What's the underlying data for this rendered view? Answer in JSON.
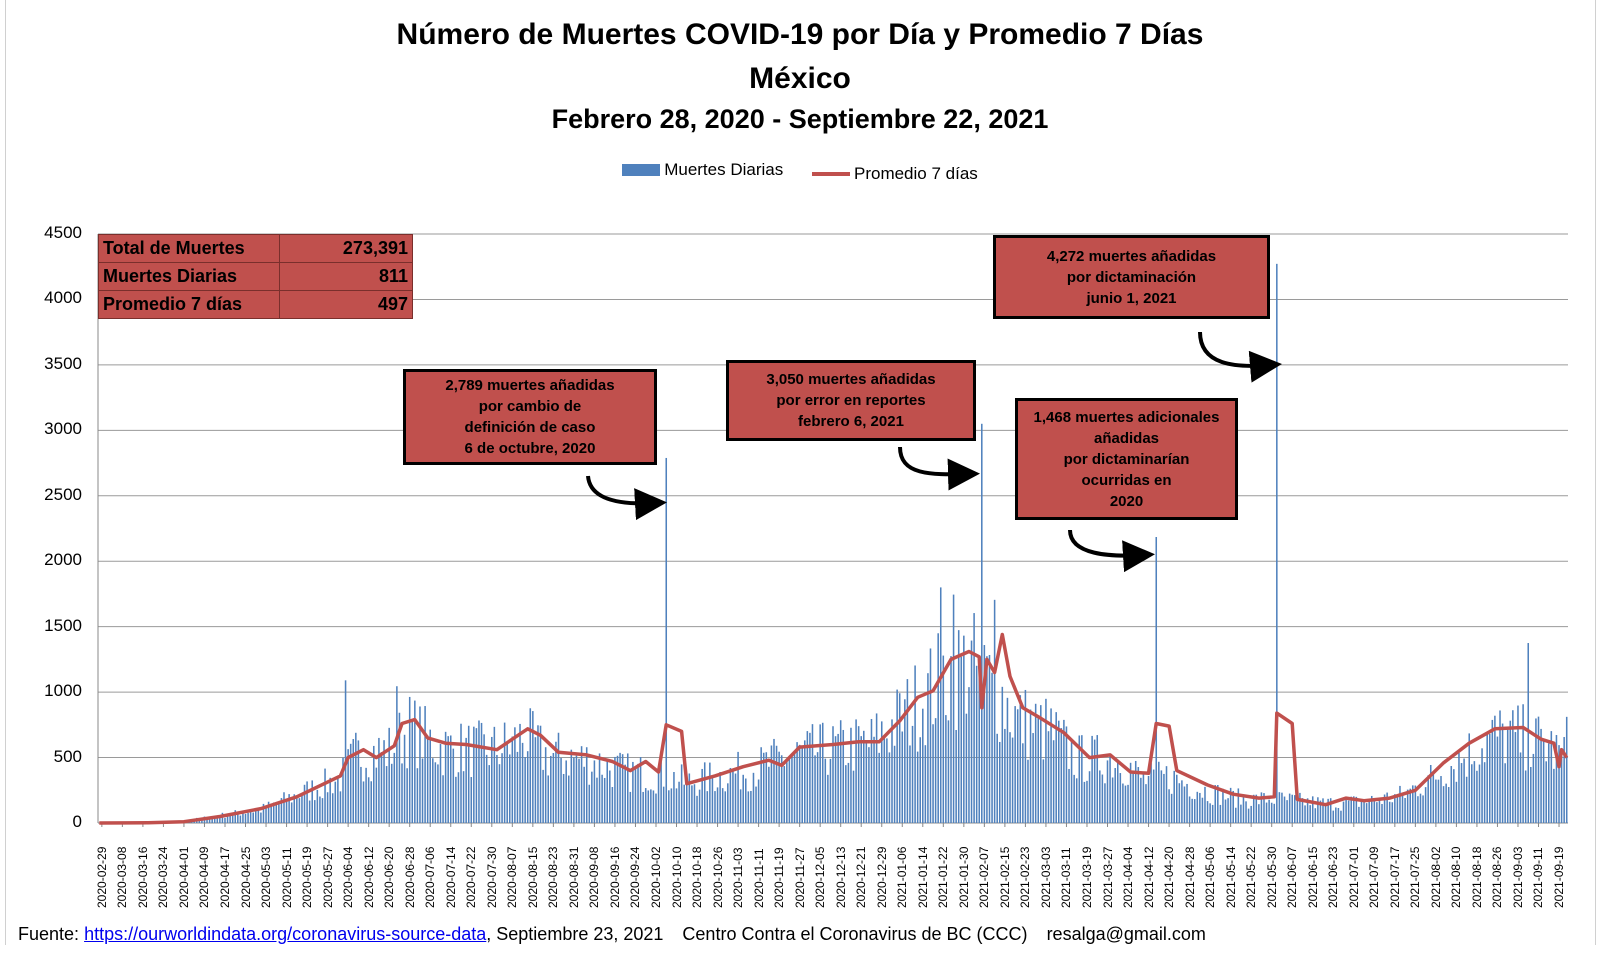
{
  "chart_data": {
    "type": "bar",
    "title": "Número de Muertes COVID-19 por Día y Promedio 7 Días",
    "subtitle": "México",
    "subtitle2": "Febrero 28, 2020 - Septiembre 22, 2021",
    "ylim": [
      0,
      4500
    ],
    "yticks": [
      "4500",
      "4000",
      "3500",
      "3000",
      "2500",
      "2000",
      "1500",
      "1000",
      "500",
      "0"
    ],
    "yvalues": [
      4500,
      4000,
      3500,
      3000,
      2500,
      2000,
      1500,
      1000,
      500,
      0
    ],
    "x_start": "2020-02-28",
    "x_end": "2021-09-22",
    "xticks": [
      "2020-02-29",
      "2020-03-08",
      "2020-03-16",
      "2020-03-24",
      "2020-04-01",
      "2020-04-09",
      "2020-04-17",
      "2020-04-25",
      "2020-05-03",
      "2020-05-11",
      "2020-05-19",
      "2020-05-27",
      "2020-06-04",
      "2020-06-12",
      "2020-06-20",
      "2020-06-28",
      "2020-07-06",
      "2020-07-14",
      "2020-07-22",
      "2020-07-30",
      "2020-08-07",
      "2020-08-15",
      "2020-08-23",
      "2020-08-31",
      "2020-09-08",
      "2020-09-16",
      "2020-09-24",
      "2020-10-02",
      "2020-10-10",
      "2020-10-18",
      "2020-10-26",
      "2020-11-03",
      "2020-11-11",
      "2020-11-19",
      "2020-11-27",
      "2020-12-05",
      "2020-12-13",
      "2020-12-21",
      "2020-12-29",
      "2021-01-06",
      "2021-01-14",
      "2021-01-22",
      "2021-01-30",
      "2021-02-07",
      "2021-02-15",
      "2021-02-23",
      "2021-03-03",
      "2021-03-11",
      "2021-03-19",
      "2021-03-27",
      "2021-04-04",
      "2021-04-12",
      "2021-04-20",
      "2021-04-28",
      "2021-05-06",
      "2021-05-14",
      "2021-05-22",
      "2021-05-30",
      "2021-06-07",
      "2021-06-15",
      "2021-06-23",
      "2021-07-01",
      "2021-07-09",
      "2021-07-17",
      "2021-07-25",
      "2021-08-02",
      "2021-08-10",
      "2021-08-18",
      "2021-08-26",
      "2021-09-03",
      "2021-09-11",
      "2021-09-19"
    ],
    "legend": {
      "bars": "Muertes Diarias",
      "line": "Promedio 7 días",
      "position": "top"
    },
    "series": [
      {
        "name": "Muertes Diarias",
        "type": "bar",
        "color": "#4f81bd",
        "approx_level_points": [
          [
            "2020-02-28",
            0
          ],
          [
            "2020-03-18",
            2
          ],
          [
            "2020-04-01",
            15
          ],
          [
            "2020-04-15",
            60
          ],
          [
            "2020-05-01",
            110
          ],
          [
            "2020-05-15",
            230
          ],
          [
            "2020-06-01",
            370
          ],
          [
            "2020-06-07",
            560
          ],
          [
            "2020-06-20",
            600
          ],
          [
            "2020-06-28",
            780
          ],
          [
            "2020-07-10",
            620
          ],
          [
            "2020-07-30",
            600
          ],
          [
            "2020-08-07",
            650
          ],
          [
            "2020-08-12",
            720
          ],
          [
            "2020-08-20",
            560
          ],
          [
            "2020-09-05",
            520
          ],
          [
            "2020-09-20",
            420
          ],
          [
            "2020-10-05",
            400
          ],
          [
            "2020-10-14",
            330
          ],
          [
            "2020-10-25",
            380
          ],
          [
            "2020-11-10",
            450
          ],
          [
            "2020-11-24",
            560
          ],
          [
            "2020-12-10",
            610
          ],
          [
            "2020-12-25",
            660
          ],
          [
            "2021-01-05",
            850
          ],
          [
            "2021-01-15",
            1050
          ],
          [
            "2021-01-25",
            1250
          ],
          [
            "2021-02-01",
            1300
          ],
          [
            "2021-02-10",
            1150
          ],
          [
            "2021-02-20",
            850
          ],
          [
            "2021-03-05",
            750
          ],
          [
            "2021-03-15",
            530
          ],
          [
            "2021-04-01",
            530
          ],
          [
            "2021-04-10",
            350
          ],
          [
            "2021-04-20",
            380
          ],
          [
            "2021-05-05",
            260
          ],
          [
            "2021-05-20",
            190
          ],
          [
            "2021-05-30",
            200
          ],
          [
            "2021-06-10",
            180
          ],
          [
            "2021-06-20",
            160
          ],
          [
            "2021-07-01",
            170
          ],
          [
            "2021-07-10",
            190
          ],
          [
            "2021-07-20",
            230
          ],
          [
            "2021-08-01",
            380
          ],
          [
            "2021-08-15",
            580
          ],
          [
            "2021-08-25",
            720
          ],
          [
            "2021-09-05",
            700
          ],
          [
            "2021-09-15",
            640
          ],
          [
            "2021-09-22",
            500
          ]
        ],
        "spikes": [
          [
            "2020-06-03",
            1090
          ],
          [
            "2020-06-23",
            1045
          ],
          [
            "2020-10-06",
            2789
          ],
          [
            "2021-01-21",
            1800
          ],
          [
            "2021-01-26",
            1745
          ],
          [
            "2021-02-06",
            3050
          ],
          [
            "2021-02-11",
            1705
          ],
          [
            "2021-04-15",
            2185
          ],
          [
            "2021-06-01",
            4272
          ],
          [
            "2021-09-07",
            1375
          ],
          [
            "2021-09-22",
            811
          ]
        ]
      },
      {
        "name": "Promedio 7 días",
        "type": "line",
        "color": "#c0504d",
        "points": [
          [
            "2020-02-28",
            0
          ],
          [
            "2020-03-18",
            2
          ],
          [
            "2020-04-01",
            10
          ],
          [
            "2020-04-15",
            50
          ],
          [
            "2020-05-01",
            110
          ],
          [
            "2020-05-15",
            200
          ],
          [
            "2020-06-01",
            360
          ],
          [
            "2020-06-04",
            500
          ],
          [
            "2020-06-10",
            560
          ],
          [
            "2020-06-15",
            500
          ],
          [
            "2020-06-22",
            590
          ],
          [
            "2020-06-25",
            760
          ],
          [
            "2020-06-30",
            790
          ],
          [
            "2020-07-05",
            650
          ],
          [
            "2020-07-12",
            610
          ],
          [
            "2020-07-20",
            600
          ],
          [
            "2020-08-01",
            560
          ],
          [
            "2020-08-07",
            640
          ],
          [
            "2020-08-13",
            720
          ],
          [
            "2020-08-18",
            670
          ],
          [
            "2020-08-25",
            540
          ],
          [
            "2020-09-05",
            520
          ],
          [
            "2020-09-15",
            470
          ],
          [
            "2020-09-22",
            400
          ],
          [
            "2020-09-28",
            470
          ],
          [
            "2020-10-03",
            390
          ],
          [
            "2020-10-06",
            750
          ],
          [
            "2020-10-12",
            700
          ],
          [
            "2020-10-14",
            300
          ],
          [
            "2020-10-25",
            360
          ],
          [
            "2020-11-05",
            430
          ],
          [
            "2020-11-15",
            480
          ],
          [
            "2020-11-20",
            440
          ],
          [
            "2020-11-27",
            580
          ],
          [
            "2020-12-10",
            600
          ],
          [
            "2020-12-20",
            620
          ],
          [
            "2020-12-28",
            620
          ],
          [
            "2021-01-05",
            780
          ],
          [
            "2021-01-12",
            960
          ],
          [
            "2021-01-18",
            1010
          ],
          [
            "2021-01-25",
            1250
          ],
          [
            "2021-02-01",
            1310
          ],
          [
            "2021-02-05",
            1270
          ],
          [
            "2021-02-06",
            880
          ],
          [
            "2021-02-08",
            1250
          ],
          [
            "2021-02-11",
            1150
          ],
          [
            "2021-02-14",
            1440
          ],
          [
            "2021-02-17",
            1120
          ],
          [
            "2021-02-22",
            880
          ],
          [
            "2021-03-01",
            800
          ],
          [
            "2021-03-10",
            690
          ],
          [
            "2021-03-20",
            500
          ],
          [
            "2021-03-28",
            520
          ],
          [
            "2021-04-05",
            390
          ],
          [
            "2021-04-12",
            380
          ],
          [
            "2021-04-15",
            760
          ],
          [
            "2021-04-20",
            740
          ],
          [
            "2021-04-23",
            400
          ],
          [
            "2021-05-05",
            290
          ],
          [
            "2021-05-15",
            220
          ],
          [
            "2021-05-25",
            190
          ],
          [
            "2021-05-31",
            200
          ],
          [
            "2021-06-01",
            840
          ],
          [
            "2021-06-07",
            760
          ],
          [
            "2021-06-09",
            180
          ],
          [
            "2021-06-20",
            140
          ],
          [
            "2021-06-28",
            190
          ],
          [
            "2021-07-05",
            170
          ],
          [
            "2021-07-15",
            190
          ],
          [
            "2021-07-25",
            250
          ],
          [
            "2021-08-05",
            460
          ],
          [
            "2021-08-15",
            610
          ],
          [
            "2021-08-25",
            720
          ],
          [
            "2021-09-05",
            730
          ],
          [
            "2021-09-12",
            640
          ],
          [
            "2021-09-17",
            610
          ],
          [
            "2021-09-19",
            430
          ],
          [
            "2021-09-20",
            560
          ],
          [
            "2021-09-22",
            500
          ]
        ]
      }
    ]
  },
  "stats": {
    "rows": [
      {
        "label": "Total de Muertes",
        "value": "273,391"
      },
      {
        "label": "Muertes Diarias",
        "value": "811"
      },
      {
        "label": "Promedio 7 días",
        "value": "497"
      }
    ]
  },
  "annotations": {
    "a1": "2,789 muertes  añadidas\npor cambio de\ndefinición de caso\n6 de octubre, 2020",
    "a2": "3,050 muertes  añadidas\npor error en reportes\nfebrero  6, 2021",
    "a3": "1,468  muertes adicionales\nañadidas\npor dictaminarían\nocurridas en\n2020",
    "a4": "4,272  muertes añadidas\npor dictaminación\njunio 1, 2021"
  },
  "footer": {
    "prefix": "Fuente:",
    "link": "https://ourworldindata.org/coronavirus-source-data",
    "date": ",  Septiembre 23, 2021",
    "org": "Centro Contra el Coronavirus de BC (CCC)",
    "email": "resalga@gmail.com"
  }
}
